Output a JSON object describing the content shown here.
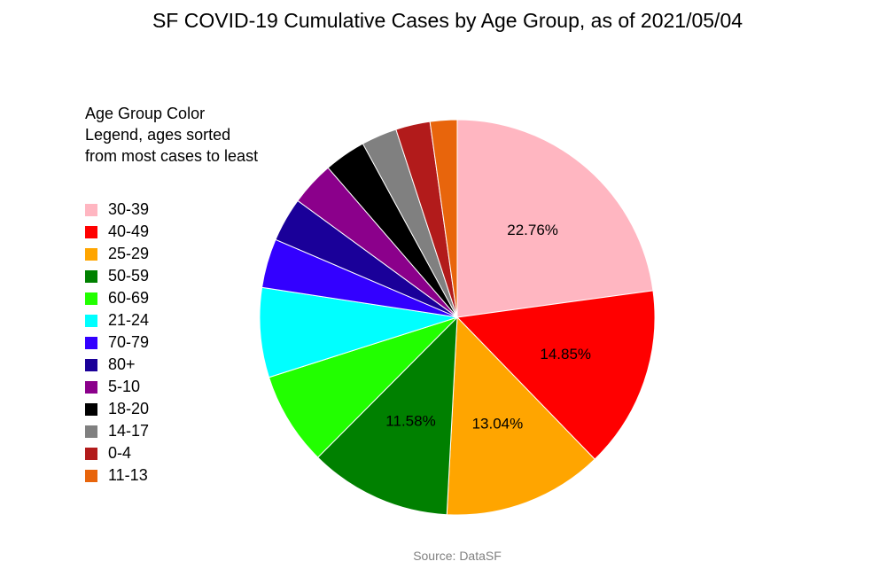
{
  "chart_data": {
    "type": "pie",
    "title": "SF COVID-19 Cumulative Cases by Age Group, as of 2021/05/04",
    "legend_title": "Age Group Color Legend, ages sorted from most cases to least",
    "legend_position": "left",
    "source": "Source: DataSF",
    "slices": [
      {
        "label": "30-39",
        "value": 22.76,
        "color": "#ffb6c1",
        "show_label": true
      },
      {
        "label": "40-49",
        "value": 14.85,
        "color": "#ff0000",
        "show_label": true
      },
      {
        "label": "25-29",
        "value": 13.04,
        "color": "#ffa500",
        "show_label": true
      },
      {
        "label": "50-59",
        "value": 11.58,
        "color": "#008000",
        "show_label": true
      },
      {
        "label": "60-69",
        "value": 7.6,
        "color": "#22ff00",
        "show_label": false
      },
      {
        "label": "21-24",
        "value": 7.3,
        "color": "#00ffff",
        "show_label": false
      },
      {
        "label": "70-79",
        "value": 4.0,
        "color": "#3300ff",
        "show_label": false
      },
      {
        "label": "80+",
        "value": 3.6,
        "color": "#1a0099",
        "show_label": false
      },
      {
        "label": "5-10",
        "value": 3.6,
        "color": "#8b008b",
        "show_label": false
      },
      {
        "label": "18-20",
        "value": 3.4,
        "color": "#000000",
        "show_label": false
      },
      {
        "label": "14-17",
        "value": 2.9,
        "color": "#808080",
        "show_label": false
      },
      {
        "label": "0-4",
        "value": 2.8,
        "color": "#b21b1b",
        "show_label": false
      },
      {
        "label": "11-13",
        "value": 2.2,
        "color": "#e8650c",
        "show_label": false
      }
    ]
  }
}
